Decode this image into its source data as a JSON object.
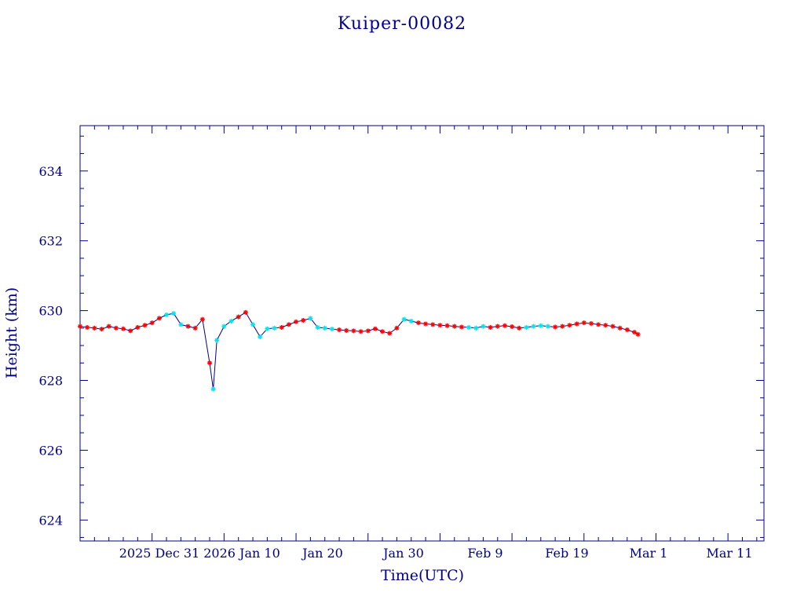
{
  "colors": {
    "axis": "#00008b",
    "line": "#00008b",
    "marker_primary": "#ff0000",
    "marker_secondary": "#00e5ee",
    "background": "#ffffff"
  },
  "chart_data": {
    "type": "scatter",
    "title": "Kuiper-00082",
    "xlabel": "Time(UTC)",
    "ylabel": "Height (km)",
    "x_tick_labels": [
      "2025 Dec 31",
      "2026 Jan 10",
      "Jan 20",
      "Jan 30",
      "Feb  9",
      "Feb 19",
      "Mar  1",
      "Mar 11"
    ],
    "y_tick_labels": [
      "624",
      "626",
      "628",
      "630",
      "632",
      "634"
    ],
    "xlim": [
      "2025-12-11T00:00",
      "2026-03-16T00:00"
    ],
    "ylim": [
      623.4,
      635.3
    ],
    "y_ticks": [
      624,
      626,
      628,
      630,
      632,
      634
    ],
    "grid": false,
    "legend": "none",
    "series": [
      {
        "marker": "asterisk",
        "connected": true,
        "points_a": [
          [
            "2025-12-11",
            629.55
          ],
          [
            "2025-12-12",
            629.52
          ],
          [
            "2025-12-13",
            629.5
          ],
          [
            "2025-12-14",
            629.47
          ],
          [
            "2025-12-15",
            629.55
          ],
          [
            "2025-12-16",
            629.5
          ],
          [
            "2025-12-17",
            629.48
          ],
          [
            "2025-12-18",
            629.42
          ],
          [
            "2025-12-19",
            629.52
          ],
          [
            "2025-12-20",
            629.58
          ],
          [
            "2025-12-21",
            629.65
          ],
          [
            "2025-12-22",
            629.78
          ],
          [
            "2025-12-23",
            629.88
          ],
          [
            "2025-12-24",
            629.92
          ],
          [
            "2025-12-25",
            629.6
          ],
          [
            "2025-12-26",
            629.55
          ],
          [
            "2025-12-27",
            629.5
          ],
          [
            "2025-12-28",
            629.75
          ],
          [
            "2025-12-29",
            628.5
          ],
          [
            "2025-12-29T12:00",
            627.75
          ],
          [
            "2025-12-30",
            629.15
          ],
          [
            "2025-12-31",
            629.55
          ],
          [
            "2026-01-01",
            629.7
          ],
          [
            "2026-01-02",
            629.82
          ],
          [
            "2026-01-03",
            629.95
          ],
          [
            "2026-01-04",
            629.6
          ],
          [
            "2026-01-05",
            629.25
          ],
          [
            "2026-01-06",
            629.48
          ],
          [
            "2026-01-07",
            629.5
          ],
          [
            "2026-01-08",
            629.52
          ],
          [
            "2026-01-09",
            629.6
          ],
          [
            "2026-01-10",
            629.68
          ],
          [
            "2026-01-11",
            629.72
          ],
          [
            "2026-01-12",
            629.78
          ],
          [
            "2026-01-13",
            629.52
          ],
          [
            "2026-01-14",
            629.5
          ],
          [
            "2026-01-15",
            629.47
          ],
          [
            "2026-01-16",
            629.45
          ],
          [
            "2026-01-17",
            629.43
          ],
          [
            "2026-01-18",
            629.42
          ],
          [
            "2026-01-19",
            629.4
          ],
          [
            "2026-01-20",
            629.42
          ],
          [
            "2026-01-21",
            629.48
          ],
          [
            "2026-01-22",
            629.4
          ],
          [
            "2026-01-23",
            629.35
          ],
          [
            "2026-01-24",
            629.5
          ],
          [
            "2026-01-25",
            629.75
          ],
          [
            "2026-01-26",
            629.7
          ],
          [
            "2026-01-27",
            629.65
          ],
          [
            "2026-01-28",
            629.62
          ],
          [
            "2026-01-29",
            629.6
          ],
          [
            "2026-01-30",
            629.58
          ]
        ],
        "points_b": [
          [
            "2026-01-31",
            629.57
          ],
          [
            "2026-02-01",
            629.55
          ],
          [
            "2026-02-02",
            629.53
          ],
          [
            "2026-02-03",
            629.52
          ],
          [
            "2026-02-04",
            629.5
          ],
          [
            "2026-02-05",
            629.55
          ],
          [
            "2026-02-06",
            629.52
          ],
          [
            "2026-02-07",
            629.55
          ],
          [
            "2026-02-08",
            629.57
          ],
          [
            "2026-02-09",
            629.54
          ],
          [
            "2026-02-10",
            629.5
          ],
          [
            "2026-02-11",
            629.52
          ],
          [
            "2026-02-12",
            629.55
          ],
          [
            "2026-02-13",
            629.57
          ],
          [
            "2026-02-14",
            629.55
          ],
          [
            "2026-02-15",
            629.53
          ],
          [
            "2026-02-16",
            629.55
          ],
          [
            "2026-02-17",
            629.58
          ],
          [
            "2026-02-18",
            629.62
          ],
          [
            "2026-02-19",
            629.65
          ],
          [
            "2026-02-20",
            629.63
          ],
          [
            "2026-02-21",
            629.6
          ],
          [
            "2026-02-22",
            629.58
          ],
          [
            "2026-02-23",
            629.55
          ],
          [
            "2026-02-24",
            629.5
          ],
          [
            "2026-02-25",
            629.45
          ],
          [
            "2026-02-26",
            629.38
          ],
          [
            "2026-02-26T12:00",
            629.32
          ]
        ]
      }
    ]
  }
}
